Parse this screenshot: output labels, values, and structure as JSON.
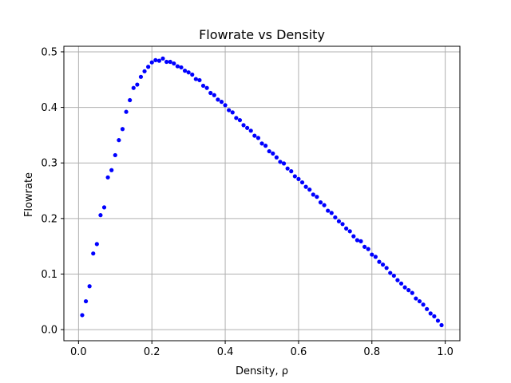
{
  "chart_data": {
    "type": "scatter",
    "title": "Flowrate vs Density",
    "xlabel": "Density, ρ",
    "ylabel": "Flowrate",
    "xlim": [
      -0.04,
      1.04
    ],
    "ylim": [
      -0.02,
      0.51
    ],
    "xticks": [
      0.0,
      0.2,
      0.4,
      0.6,
      0.8,
      1.0
    ],
    "xtick_labels": [
      "0.0",
      "0.2",
      "0.4",
      "0.6",
      "0.8",
      "1.0"
    ],
    "yticks": [
      0.0,
      0.1,
      0.2,
      0.3,
      0.4,
      0.5
    ],
    "ytick_labels": [
      "0.0",
      "0.1",
      "0.2",
      "0.3",
      "0.4",
      "0.5"
    ],
    "grid": true,
    "marker_color": "#0000ff",
    "series": [
      {
        "x": [
          0.01,
          0.02,
          0.03,
          0.04,
          0.05,
          0.06,
          0.07,
          0.08,
          0.09,
          0.1,
          0.11,
          0.12,
          0.13,
          0.14,
          0.15,
          0.16,
          0.17,
          0.18,
          0.19,
          0.2,
          0.21,
          0.22,
          0.23,
          0.24,
          0.25,
          0.26,
          0.27,
          0.28,
          0.29,
          0.3,
          0.31,
          0.32,
          0.33,
          0.34,
          0.35,
          0.36,
          0.37,
          0.38,
          0.39,
          0.4,
          0.41,
          0.42,
          0.43,
          0.44,
          0.45,
          0.46,
          0.47,
          0.48,
          0.49,
          0.5,
          0.51,
          0.52,
          0.53,
          0.54,
          0.55,
          0.56,
          0.57,
          0.58,
          0.59,
          0.6,
          0.61,
          0.62,
          0.63,
          0.64,
          0.65,
          0.66,
          0.67,
          0.68,
          0.69,
          0.7,
          0.71,
          0.72,
          0.73,
          0.74,
          0.75,
          0.76,
          0.77,
          0.78,
          0.79,
          0.8,
          0.81,
          0.82,
          0.83,
          0.84,
          0.85,
          0.86,
          0.87,
          0.88,
          0.89,
          0.9,
          0.91,
          0.92,
          0.93,
          0.94,
          0.95,
          0.96,
          0.97,
          0.98,
          0.99
        ],
        "y": [
          0.026,
          0.051,
          0.078,
          0.137,
          0.154,
          0.206,
          0.22,
          0.274,
          0.287,
          0.314,
          0.341,
          0.361,
          0.392,
          0.413,
          0.435,
          0.441,
          0.455,
          0.465,
          0.473,
          0.481,
          0.485,
          0.484,
          0.488,
          0.482,
          0.482,
          0.479,
          0.474,
          0.472,
          0.466,
          0.463,
          0.459,
          0.451,
          0.449,
          0.439,
          0.435,
          0.426,
          0.422,
          0.414,
          0.41,
          0.404,
          0.395,
          0.391,
          0.381,
          0.377,
          0.368,
          0.363,
          0.358,
          0.349,
          0.345,
          0.335,
          0.331,
          0.321,
          0.317,
          0.31,
          0.302,
          0.299,
          0.29,
          0.285,
          0.276,
          0.271,
          0.265,
          0.257,
          0.252,
          0.243,
          0.239,
          0.229,
          0.224,
          0.214,
          0.21,
          0.202,
          0.195,
          0.19,
          0.182,
          0.177,
          0.168,
          0.161,
          0.159,
          0.149,
          0.145,
          0.135,
          0.131,
          0.122,
          0.117,
          0.111,
          0.102,
          0.097,
          0.089,
          0.083,
          0.076,
          0.071,
          0.066,
          0.056,
          0.051,
          0.045,
          0.037,
          0.029,
          0.024,
          0.016,
          0.008
        ]
      }
    ]
  }
}
